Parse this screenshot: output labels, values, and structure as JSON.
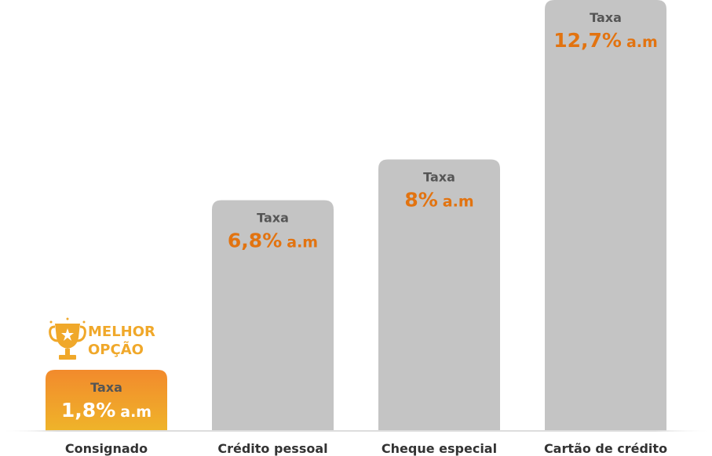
{
  "chart_data": {
    "type": "bar",
    "categories": [
      "Consignado",
      "Crédito pessoal",
      "Cheque especial",
      "Cartão de crédito"
    ],
    "values": [
      1.8,
      6.8,
      8,
      12.7
    ],
    "value_labels": [
      "1,8%",
      "6,8%",
      "8%",
      "12,7%"
    ],
    "unit": "a.m",
    "bar_caption": "Taxa",
    "highlight_index": 0,
    "badge": {
      "line1": "MELHOR",
      "line2": "OPÇÃO",
      "icon": "trophy-icon"
    },
    "ylim": [
      0,
      12.7
    ],
    "grid": false,
    "title": "",
    "xlabel": "",
    "ylabel": ""
  },
  "colors": {
    "bar": "#c4c4c4",
    "highlight_top": "#f28a2c",
    "highlight_bottom": "#efb42a",
    "value_text": "#e27310",
    "highlight_text": "#ffffff",
    "badge": "#f0a82a",
    "category_text": "#333333",
    "axis": "#dddddd"
  }
}
